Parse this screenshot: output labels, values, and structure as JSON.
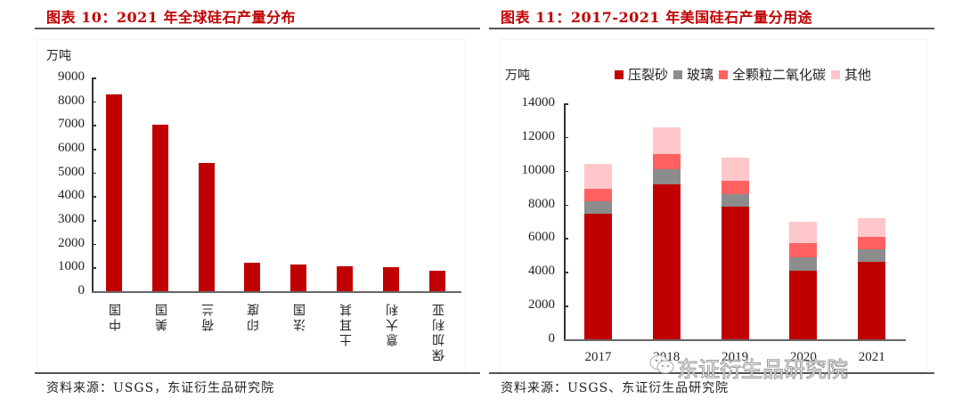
{
  "left_panel": {
    "title": "图表 10：2021 年全球硅石产量分布",
    "unit": "万吨",
    "source": "资料来源：USGS，东证衍生品研究院",
    "yticks": [
      "9000",
      "8000",
      "7000",
      "6000",
      "5000",
      "4000",
      "3000",
      "2000",
      "1000",
      "0"
    ],
    "categories": [
      "中国",
      "美国",
      "荷兰",
      "印度",
      "法国",
      "土耳其",
      "意大利",
      "保加利亚"
    ],
    "bar_color": "#c00000"
  },
  "right_panel": {
    "title": "图表 11：2017-2021 年美国硅石产量分用途",
    "unit": "万吨",
    "source": "资料来源：USGS、东证衍生品研究院",
    "yticks": [
      "14000",
      "12000",
      "10000",
      "8000",
      "6000",
      "4000",
      "2000",
      "0"
    ],
    "categories": [
      "2017",
      "2018",
      "2019",
      "2020",
      "2021"
    ],
    "legend": [
      {
        "label": "压裂砂",
        "color": "#c00000"
      },
      {
        "label": "玻璃",
        "color": "#8c8c8c"
      },
      {
        "label": "全颗粒二氧化碳",
        "color": "#ff6161"
      },
      {
        "label": "其他",
        "color": "#ffc7c9"
      }
    ]
  },
  "watermark": {
    "text": "东证衍生品研究院",
    "icon": "wechat-icon"
  },
  "chart_data": [
    {
      "type": "bar",
      "title": "图表 10：2021 年全球硅石产量分布",
      "xlabel": "",
      "ylabel": "万吨",
      "ylim": [
        0,
        9000
      ],
      "categories": [
        "中国",
        "美国",
        "荷兰",
        "印度",
        "法国",
        "土耳其",
        "意大利",
        "保加利亚"
      ],
      "values": [
        8300,
        7000,
        5400,
        1200,
        1120,
        1040,
        1010,
        850
      ],
      "grid": false,
      "legend_position": "none",
      "source": "资料来源：USGS，东证衍生品研究院"
    },
    {
      "type": "bar",
      "stacked": true,
      "title": "图表 11：2017-2021 年美国硅石产量分用途",
      "xlabel": "",
      "ylabel": "万吨",
      "ylim": [
        0,
        14000
      ],
      "categories": [
        "2017",
        "2018",
        "2019",
        "2020",
        "2021"
      ],
      "series": [
        {
          "name": "压裂砂",
          "color": "#c00000",
          "values": [
            7470,
            9180,
            7880,
            4050,
            4600
          ]
        },
        {
          "name": "玻璃",
          "color": "#8c8c8c",
          "values": [
            740,
            890,
            750,
            830,
            720
          ]
        },
        {
          "name": "全颗粒二氧化碳",
          "color": "#ff6161",
          "values": [
            720,
            900,
            770,
            840,
            780
          ]
        },
        {
          "name": "其他",
          "color": "#ffc7c9",
          "values": [
            1460,
            1630,
            1370,
            1260,
            1090
          ]
        }
      ],
      "totals": [
        10390,
        12600,
        10770,
        6980,
        7190
      ],
      "grid": false,
      "legend_position": "top",
      "source": "资料来源：USGS、东证衍生品研究院"
    }
  ]
}
